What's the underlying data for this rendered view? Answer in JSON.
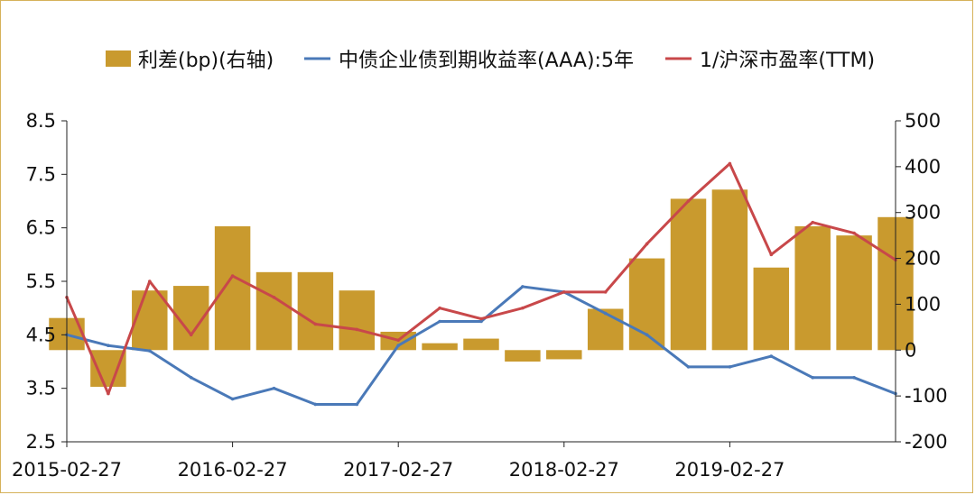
{
  "chart_data": {
    "type": "bar+line",
    "x": [
      "2015-02-27",
      "2015-05-27",
      "2015-08-27",
      "2015-11-27",
      "2016-02-27",
      "2016-05-27",
      "2016-08-27",
      "2016-11-27",
      "2017-02-27",
      "2017-05-27",
      "2017-08-27",
      "2017-11-27",
      "2018-02-27",
      "2018-05-27",
      "2018-08-27",
      "2018-11-27",
      "2019-02-27",
      "2019-05-27",
      "2019-08-27",
      "2019-11-27",
      "2020-02-27"
    ],
    "x_tick_labels": [
      "2015-02-27",
      "2016-02-27",
      "2017-02-27",
      "2018-02-27",
      "2019-02-27"
    ],
    "left_axis": {
      "ylim": [
        2.5,
        8.5
      ],
      "ticks": [
        "2.5",
        "3.5",
        "4.5",
        "5.5",
        "6.5",
        "7.5",
        "8.5"
      ]
    },
    "right_axis": {
      "ylim": [
        -200,
        500
      ],
      "ticks": [
        "-200",
        "-100",
        "0",
        "100",
        "200",
        "300",
        "400",
        "500"
      ]
    },
    "series": [
      {
        "name": "利差(bp)(右轴)",
        "type": "bar",
        "axis": "right",
        "color": "#c99a2e",
        "values": [
          70,
          -80,
          130,
          140,
          270,
          170,
          170,
          130,
          40,
          15,
          25,
          -25,
          -20,
          90,
          200,
          330,
          350,
          180,
          270,
          250,
          290
        ]
      },
      {
        "name": "中债企业债到期收益率(AAA):5年",
        "type": "line",
        "axis": "left",
        "color": "#4a79b8",
        "values": [
          4.5,
          4.3,
          4.2,
          3.7,
          3.3,
          3.5,
          3.2,
          3.2,
          4.3,
          4.75,
          4.75,
          5.4,
          5.3,
          4.9,
          4.5,
          3.9,
          3.9,
          4.1,
          3.7,
          3.7,
          3.4
        ]
      },
      {
        "name": "1/沪深市盈率(TTM)",
        "type": "line",
        "axis": "left",
        "color": "#c8484a",
        "values": [
          5.2,
          3.4,
          5.5,
          4.5,
          5.6,
          5.2,
          4.7,
          4.6,
          4.4,
          5.0,
          4.8,
          5.0,
          5.3,
          5.3,
          6.2,
          7.0,
          7.7,
          6.0,
          6.6,
          6.4,
          5.9
        ]
      }
    ]
  }
}
